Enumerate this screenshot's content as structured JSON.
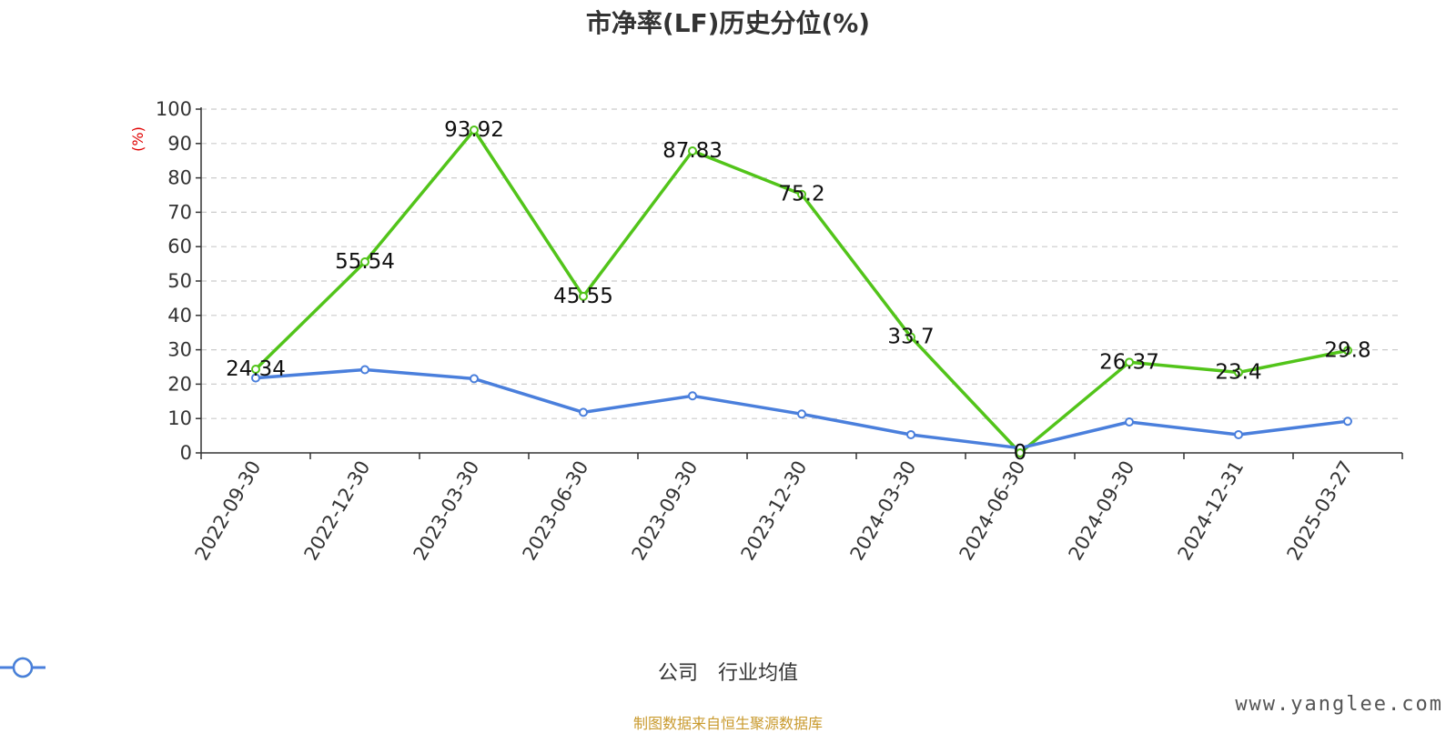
{
  "chart_data": {
    "type": "line",
    "title": "市净率(LF)历史分位(%)",
    "ylabel": "(%)",
    "ylim": [
      0,
      100
    ],
    "yticks": [
      0,
      10,
      20,
      30,
      40,
      50,
      60,
      70,
      80,
      90,
      100
    ],
    "grid": true,
    "legend_position": "bottom-center",
    "categories": [
      "2022-09-30",
      "2022-12-30",
      "2023-03-30",
      "2023-06-30",
      "2023-09-30",
      "2023-12-30",
      "2024-03-30",
      "2024-06-30",
      "2024-09-30",
      "2024-12-31",
      "2025-03-27"
    ],
    "series": [
      {
        "name": "公司",
        "color": "#52c41a",
        "values": [
          24.34,
          55.54,
          93.92,
          45.55,
          87.83,
          75.2,
          33.7,
          0,
          26.37,
          23.4,
          29.8
        ],
        "labels": [
          "24.34",
          "55.54",
          "93.92",
          "45.55",
          "87.83",
          "75.2",
          "33.7",
          "0",
          "26.37",
          "23.4",
          "29.8"
        ]
      },
      {
        "name": "行业均值",
        "color": "#4a7fdc",
        "values": [
          21.8,
          24.2,
          21.6,
          11.8,
          16.6,
          11.3,
          5.3,
          1.4,
          9.0,
          5.3,
          9.2
        ]
      }
    ]
  },
  "source_note": "制图数据来自恒生聚源数据库",
  "watermark": "www.yanglee.com"
}
